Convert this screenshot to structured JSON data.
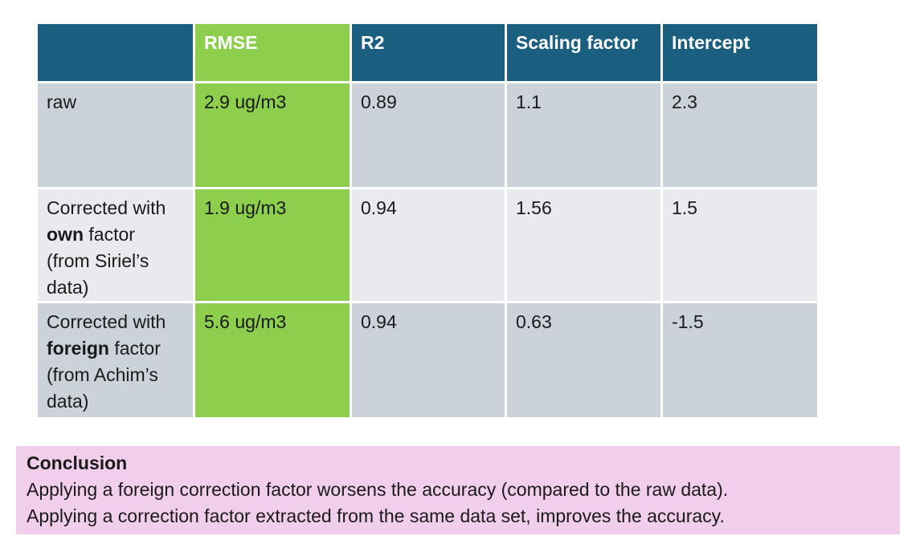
{
  "colors": {
    "header_teal": "#1A5E80",
    "accent_green": "#8DCE4D",
    "row_gray": "#CCD2D9",
    "row_light_gray": "#E8EAED",
    "conclusion_pink": "#F1CFEC",
    "text_dark": "#1A1A1A",
    "header_text": "#FFFFFF"
  },
  "table": {
    "column_headers": [
      "",
      "RMSE",
      "R2",
      "Scaling factor",
      "Intercept"
    ],
    "rows": [
      {
        "label_segments": [
          {
            "text": "raw",
            "bold": false
          }
        ],
        "rmse": "2.9 ug/m3",
        "r2": "0.89",
        "scaling_factor": "1.1",
        "intercept": "2.3"
      },
      {
        "label_segments": [
          {
            "text": "Corrected with ",
            "bold": false
          },
          {
            "text": "own",
            "bold": true
          },
          {
            "text": " factor (from Siriel’s data)",
            "bold": false
          }
        ],
        "rmse": "1.9 ug/m3",
        "r2": "0.94",
        "scaling_factor": "1.56",
        "intercept": "1.5"
      },
      {
        "label_segments": [
          {
            "text": "Corrected with ",
            "bold": false
          },
          {
            "text": "foreign",
            "bold": true
          },
          {
            "text": " factor (from Achim’s data)",
            "bold": false
          }
        ],
        "rmse": "5.6 ug/m3",
        "r2": "0.94",
        "scaling_factor": "0.63",
        "intercept": "-1.5"
      }
    ]
  },
  "chart_data": {
    "type": "table",
    "columns": [
      "",
      "RMSE",
      "R2",
      "Scaling factor",
      "Intercept"
    ],
    "rows": [
      [
        "raw",
        "2.9 ug/m3",
        "0.89",
        "1.1",
        "2.3"
      ],
      [
        "Corrected with own factor (from Siriel’s data)",
        "1.9 ug/m3",
        "0.94",
        "1.56",
        "1.5"
      ],
      [
        "Corrected with foreign factor (from Achim’s data)",
        "5.6 ug/m3",
        "0.94",
        "0.63",
        "-1.5"
      ]
    ]
  },
  "conclusion": {
    "title": "Conclusion",
    "lines": [
      "Applying a foreign correction factor worsens the accuracy (compared to the raw data).",
      "Applying a correction factor extracted from the same data set, improves the accuracy."
    ]
  }
}
